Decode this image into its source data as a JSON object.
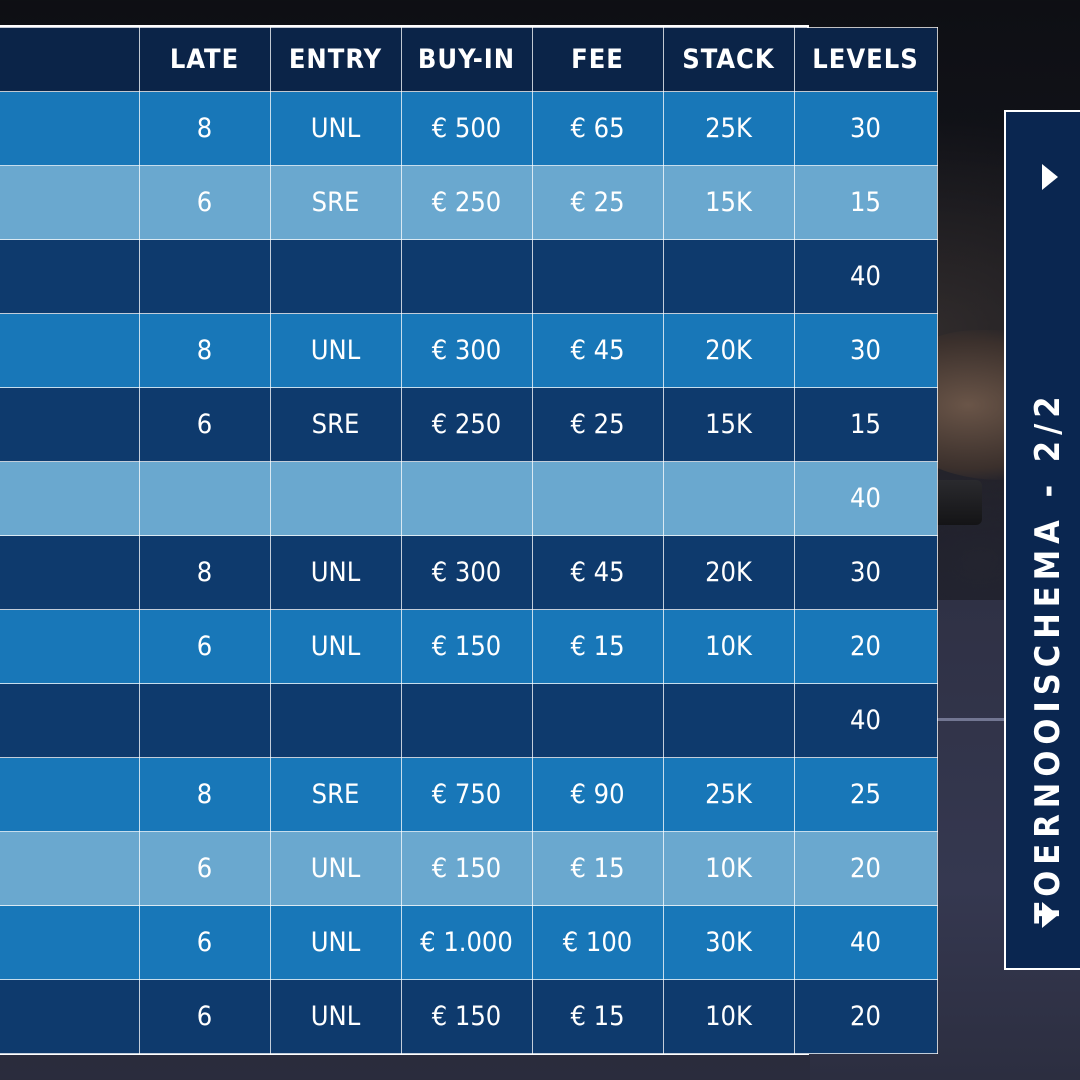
{
  "table": {
    "headers": [
      "",
      "LATE",
      "ENTRY",
      "BUY-IN",
      "FEE",
      "STACK",
      "LEVELS"
    ],
    "rows": [
      {
        "shade": "mid",
        "cells": [
          "",
          "8",
          "UNL",
          "€ 500",
          "€ 65",
          "25K",
          "30"
        ]
      },
      {
        "shade": "light",
        "cells": [
          "",
          "6",
          "SRE",
          "€ 250",
          "€ 25",
          "15K",
          "15"
        ]
      },
      {
        "shade": "dark",
        "cells": [
          "",
          "",
          "",
          "",
          "",
          "",
          "40"
        ]
      },
      {
        "shade": "mid",
        "cells": [
          "",
          "8",
          "UNL",
          "€ 300",
          "€ 45",
          "20K",
          "30"
        ]
      },
      {
        "shade": "dark",
        "cells": [
          "",
          "6",
          "SRE",
          "€ 250",
          "€ 25",
          "15K",
          "15"
        ]
      },
      {
        "shade": "light",
        "cells": [
          "",
          "",
          "",
          "",
          "",
          "",
          "40"
        ]
      },
      {
        "shade": "dark",
        "cells": [
          "",
          "8",
          "UNL",
          "€ 300",
          "€ 45",
          "20K",
          "30"
        ]
      },
      {
        "shade": "mid",
        "cells": [
          "",
          "6",
          "UNL",
          "€ 150",
          "€ 15",
          "10K",
          "20"
        ]
      },
      {
        "shade": "dark",
        "cells": [
          "",
          "",
          "",
          "",
          "",
          "",
          "40"
        ]
      },
      {
        "shade": "mid",
        "cells": [
          "",
          "8",
          "SRE",
          "€ 750",
          "€ 90",
          "25K",
          "25"
        ]
      },
      {
        "shade": "light",
        "cells": [
          "",
          "6",
          "UNL",
          "€ 150",
          "€ 15",
          "10K",
          "20"
        ]
      },
      {
        "shade": "mid",
        "cells": [
          "",
          "6",
          "UNL",
          "€ 1.000",
          "€ 100",
          "30K",
          "40"
        ]
      },
      {
        "shade": "dark",
        "cells": [
          "",
          "6",
          "UNL",
          "€ 150",
          "€ 15",
          "10K",
          "20"
        ]
      }
    ]
  },
  "side_tab": {
    "title": "TOERNOOISCHEMA - 2/2"
  },
  "colors": {
    "header": "#0b2448",
    "row_mid": "#1877b8",
    "row_light": "#6aa8cf",
    "row_dark": "#0e3a6d",
    "tab": "#0a2650"
  },
  "icons": {
    "tab_arrows": "triangle-right-icon"
  }
}
